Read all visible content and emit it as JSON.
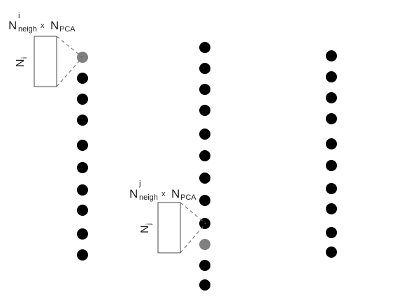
{
  "colors": {
    "dot": "#000000",
    "highlight": "#808080",
    "line": "#666666",
    "box": "#444444"
  },
  "annotations": [
    {
      "label_main": "N",
      "label_sub": "neigh",
      "label_sup": "i",
      "times": "x",
      "label_main2": "N",
      "label_sub2": "PCA",
      "side_main": "N",
      "side_sub": "i"
    },
    {
      "label_main": "N",
      "label_sub": "neigh",
      "label_sup": "j",
      "times": "x",
      "label_main2": "N",
      "label_sub2": "PCA",
      "side_main": "N",
      "side_sub": "j"
    }
  ],
  "columns": [
    {
      "name": "left",
      "point_count": 10,
      "highlighted_index": 0
    },
    {
      "name": "middle",
      "point_count": 12,
      "highlighted_index": 9
    },
    {
      "name": "right",
      "point_count": 10,
      "highlighted_index": null
    }
  ]
}
